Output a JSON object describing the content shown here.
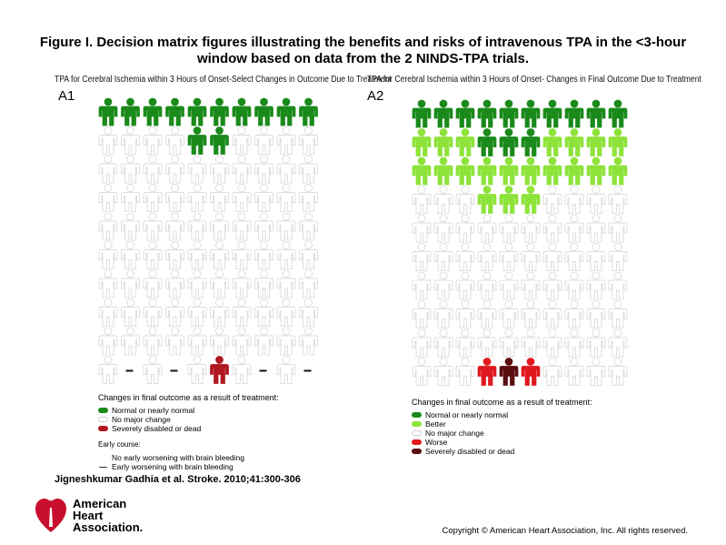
{
  "figure": {
    "title_line1": "Figure I. Decision matrix figures illustrating the benefits and risks of intravenous TPA in the <3-hour",
    "title_line2": "window based on data from the 2 NINDS-TPA trials."
  },
  "panel_a1": {
    "id": "A1",
    "title": "TPA for Cerebral Ischemia within 3 Hours of Onset-Select Changes in Outcome Due to Treatment",
    "grid_rows": [
      [
        "normal",
        "normal",
        "normal",
        "normal",
        "normal",
        "normal",
        "normal",
        "normal",
        "normal",
        "normal"
      ],
      [
        "none",
        "none",
        "none",
        "none",
        "normal",
        "normal",
        "none",
        "none",
        "none",
        "none"
      ],
      [
        "none",
        "none",
        "none",
        "none",
        "none",
        "none",
        "none",
        "none",
        "none",
        "none"
      ],
      [
        "none",
        "none",
        "none",
        "none",
        "none",
        "none",
        "none",
        "none",
        "none",
        "none"
      ],
      [
        "none",
        "none",
        "none",
        "none",
        "none",
        "none",
        "none",
        "none",
        "none",
        "none"
      ],
      [
        "none",
        "none",
        "none",
        "none",
        "none",
        "none",
        "none",
        "none",
        "none",
        "none"
      ],
      [
        "none",
        "none",
        "none",
        "none",
        "none",
        "none",
        "none",
        "none",
        "none",
        "none"
      ],
      [
        "none",
        "none",
        "none",
        "none",
        "none",
        "none",
        "none",
        "none",
        "none",
        "none"
      ],
      [
        "none",
        "none",
        "none",
        "none",
        "none",
        "none",
        "none",
        "none",
        "none",
        "none"
      ],
      [
        "none",
        "dash",
        "none",
        "dash",
        "none",
        "severe",
        "none",
        "dash",
        "none",
        "dash"
      ]
    ],
    "legend": {
      "heading": "Changes in final outcome as a result of treatment:",
      "items": [
        {
          "label": "Normal or nearly normal",
          "color": "#1a8a1a"
        },
        {
          "label": "No major change",
          "color": "#ffffff"
        },
        {
          "label": "Severely disabled or dead",
          "color": "#b0171f"
        }
      ],
      "early_heading": "Early course:",
      "early_items": [
        {
          "label": "No early worsening with brain bleeding",
          "marker": ""
        },
        {
          "label": "Early worsening with brain bleeding",
          "marker": "—"
        }
      ]
    }
  },
  "panel_a2": {
    "id": "A2",
    "title": "TPA for Cerebral Ischemia within 3 Hours of Onset- Changes in Final Outcome Due to Treatment",
    "grid_rows": [
      [
        "normal",
        "normal",
        "normal",
        "normal",
        "normal",
        "normal",
        "normal",
        "normal",
        "normal",
        "normal"
      ],
      [
        "better",
        "better",
        "better",
        "normal",
        "normal",
        "normal",
        "better",
        "better",
        "better",
        "better"
      ],
      [
        "better",
        "better",
        "better",
        "better",
        "better",
        "better",
        "better",
        "better",
        "better",
        "better"
      ],
      [
        "none",
        "none",
        "none",
        "better",
        "better",
        "better",
        "none",
        "none",
        "none",
        "none"
      ],
      [
        "none",
        "none",
        "none",
        "none",
        "none",
        "none",
        "none",
        "none",
        "none",
        "none"
      ],
      [
        "none",
        "none",
        "none",
        "none",
        "none",
        "none",
        "none",
        "none",
        "none",
        "none"
      ],
      [
        "none",
        "none",
        "none",
        "none",
        "none",
        "none",
        "none",
        "none",
        "none",
        "none"
      ],
      [
        "none",
        "none",
        "none",
        "none",
        "none",
        "none",
        "none",
        "none",
        "none",
        "none"
      ],
      [
        "none",
        "none",
        "none",
        "none",
        "none",
        "none",
        "none",
        "none",
        "none",
        "none"
      ],
      [
        "none",
        "none",
        "none",
        "worse",
        "severe",
        "worse",
        "none",
        "none",
        "none",
        "none"
      ]
    ],
    "legend": {
      "heading": "Changes in final outcome as a result of treatment:",
      "items": [
        {
          "label": "Normal or nearly normal",
          "color": "#1a8a1a"
        },
        {
          "label": "Better",
          "color": "#8ee33a"
        },
        {
          "label": "No major change",
          "color": "#ffffff"
        },
        {
          "label": "Worse",
          "color": "#e0181e"
        },
        {
          "label": "Severely disabled or dead",
          "color": "#5a0e10"
        }
      ]
    }
  },
  "category_colors": {
    "normal": "#1a8a1a",
    "better": "#8ee33a",
    "none": "#ffffff",
    "worse": "#e0181e",
    "severe": "#b0171f"
  },
  "a2_severe_color": "#5a0e10",
  "citation": "Jigneshkumar Gadhia et al. Stroke. 2010;41:300-306",
  "logo": {
    "line1": "American",
    "line2": "Heart",
    "line3": "Association."
  },
  "copyright": "Copyright © American Heart Association, Inc. All rights reserved."
}
